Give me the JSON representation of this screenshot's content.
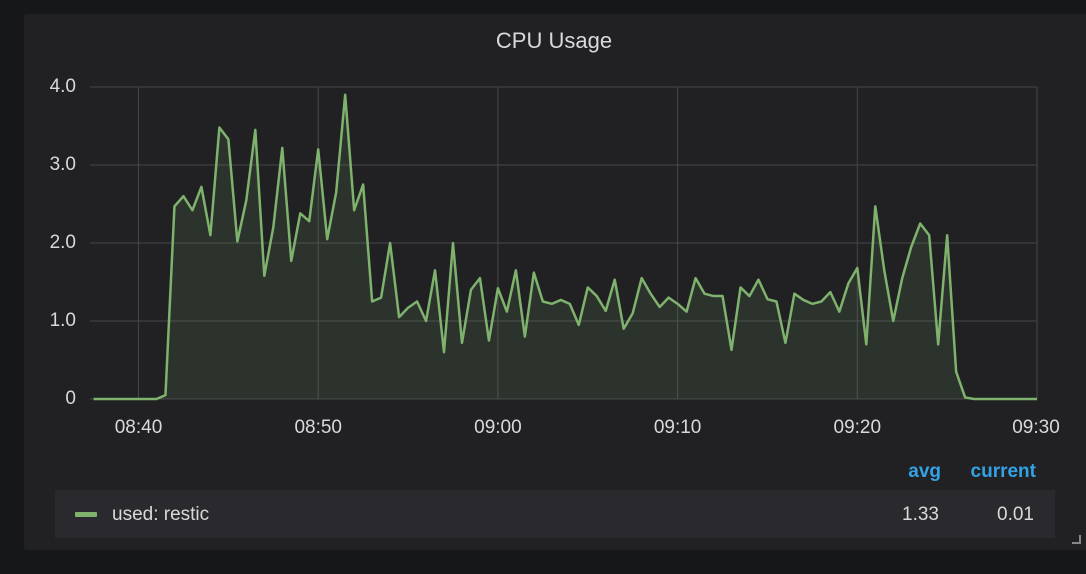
{
  "chart_data": {
    "type": "line",
    "title": "CPU Usage",
    "x": [
      517.5,
      518,
      518.5,
      519,
      519.5,
      520,
      520.5,
      521,
      521.5,
      522,
      522.5,
      523,
      523.5,
      524,
      524.5,
      525,
      525.5,
      526,
      526.5,
      527,
      527.5,
      528,
      528.5,
      529,
      529.5,
      530,
      530.5,
      531,
      531.5,
      532,
      532.5,
      533,
      533.5,
      534,
      534.5,
      535,
      535.5,
      536,
      536.5,
      537,
      537.5,
      538,
      538.5,
      539,
      539.5,
      540,
      540.5,
      541,
      541.5,
      542,
      542.5,
      543,
      543.5,
      544,
      544.5,
      545,
      545.5,
      546,
      546.5,
      547,
      547.5,
      548,
      548.5,
      549,
      549.5,
      550,
      550.5,
      551,
      551.5,
      552,
      552.5,
      553,
      553.5,
      554,
      554.5,
      555,
      555.5,
      556,
      556.5,
      557,
      557.5,
      558,
      558.5,
      559,
      559.5,
      560,
      560.5,
      561,
      561.5,
      562,
      562.5,
      563,
      563.5,
      564,
      564.5,
      565,
      565.5,
      566,
      566.5,
      567,
      567.5,
      568,
      568.5,
      569,
      569.5,
      570
    ],
    "series": [
      {
        "name": "used: restic",
        "color": "#7eb26d",
        "values": [
          0,
          0,
          0,
          0,
          0,
          0,
          0,
          0,
          0.05,
          2.47,
          2.6,
          2.42,
          2.72,
          2.1,
          3.48,
          3.33,
          2.02,
          2.55,
          3.45,
          1.58,
          2.2,
          3.22,
          1.77,
          2.38,
          2.28,
          3.2,
          2.05,
          2.65,
          3.9,
          2.42,
          2.75,
          1.25,
          1.3,
          2.0,
          1.05,
          1.17,
          1.25,
          1.0,
          1.65,
          0.6,
          2.0,
          0.72,
          1.4,
          1.55,
          0.75,
          1.42,
          1.12,
          1.65,
          0.8,
          1.62,
          1.25,
          1.22,
          1.27,
          1.22,
          0.95,
          1.43,
          1.32,
          1.13,
          1.53,
          0.9,
          1.1,
          1.55,
          1.35,
          1.18,
          1.3,
          1.22,
          1.12,
          1.55,
          1.35,
          1.32,
          1.32,
          0.63,
          1.43,
          1.32,
          1.53,
          1.28,
          1.25,
          0.72,
          1.35,
          1.27,
          1.22,
          1.25,
          1.37,
          1.12,
          1.48,
          1.68,
          0.7,
          2.47,
          1.65,
          1.0,
          1.55,
          1.95,
          2.25,
          2.1,
          0.7,
          2.1,
          0.35,
          0.02,
          0,
          0,
          0,
          0,
          0,
          0,
          0,
          0
        ]
      }
    ],
    "xlim": [
      517.3,
      570
    ],
    "xticks": [
      {
        "value": 520,
        "label": "08:40"
      },
      {
        "value": 530,
        "label": "08:50"
      },
      {
        "value": 540,
        "label": "09:00"
      },
      {
        "value": 550,
        "label": "09:10"
      },
      {
        "value": 560,
        "label": "09:20"
      },
      {
        "value": 570,
        "label": "09:30"
      }
    ],
    "ylim": [
      0,
      4
    ],
    "yticks": [
      0,
      {
        "value": 1,
        "label": "1.0"
      },
      {
        "value": 2,
        "label": "2.0"
      },
      {
        "value": 3,
        "label": "3.0"
      },
      {
        "value": 4,
        "label": "4.0"
      }
    ],
    "grid": true,
    "legend": {
      "columns": [
        "avg",
        "current"
      ],
      "values": [
        1.33,
        0.01
      ]
    }
  }
}
